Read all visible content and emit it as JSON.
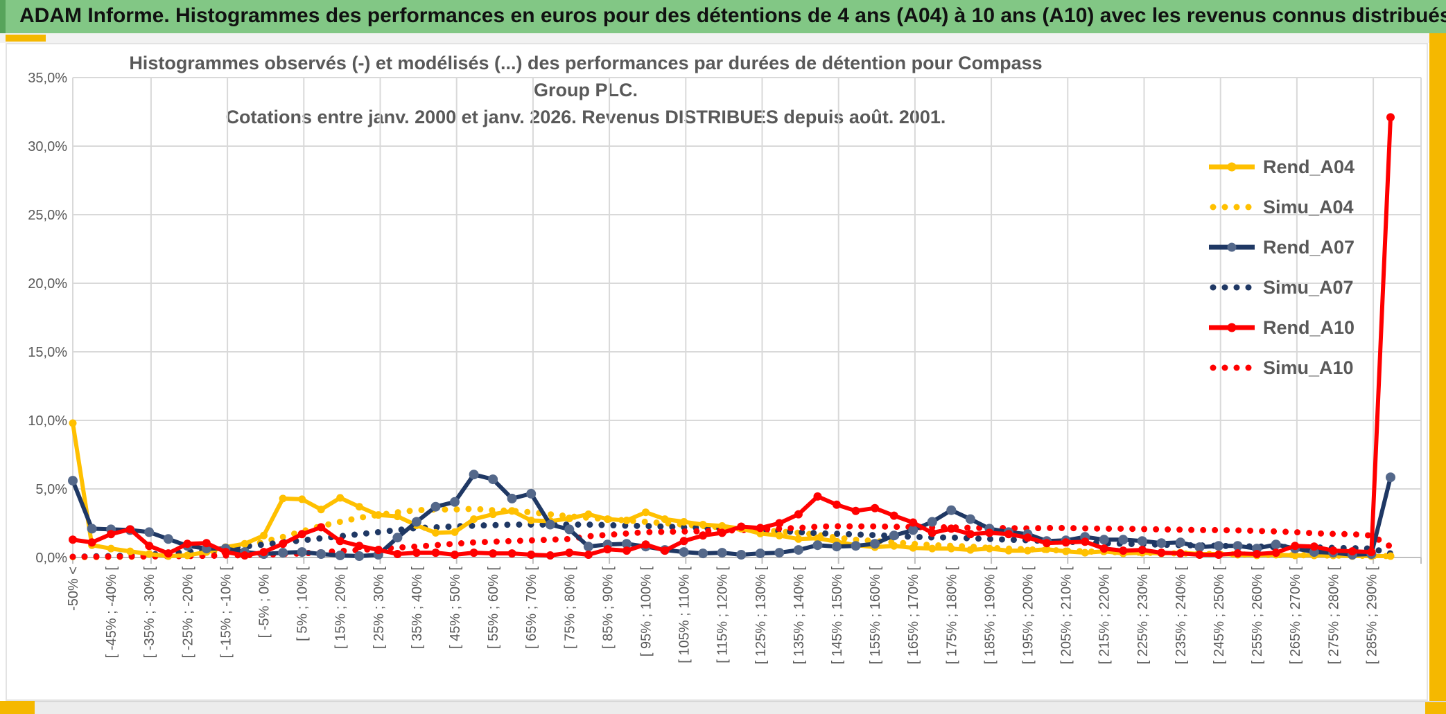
{
  "header": {
    "title": "ADAM Informe. Histogrammes des performances en euros pour des détentions de 4 ans (A04) à 10 ans (A10) avec les revenus connus distribués"
  },
  "colors": {
    "header_green": "#82C785",
    "header_green_dark": "#57A45B",
    "accent_gold": "#F5B800",
    "series_gold": "#FFC000",
    "series_navy": "#1F3864",
    "series_navy_marker": "#54688A",
    "series_red": "#FF0000",
    "text_gray": "#595959",
    "gridline": "#D9D9D9",
    "axis_line": "#BFBFBF"
  },
  "chart_data": {
    "type": "line",
    "title_line1": "Histogrammes observés (-) et modélisés (...) des performances par durées de détention pour Compass Group PLC.",
    "title_line2": "Cotations entre janv. 2000 et janv. 2026. Revenus DISTRIBUES depuis août. 2001.",
    "ylabel": "",
    "xlabel": "",
    "ylim": [
      0,
      35
    ],
    "y_tick_step_pct": 5,
    "y_ticks": [
      "35,0%",
      "30,0%",
      "25,0%",
      "20,0%",
      "15,0%",
      "10,0%",
      "5,0%",
      "0,0%"
    ],
    "grid": true,
    "legend_position": "right-inside",
    "n_bins": 70,
    "bins_per_label": 2,
    "categories": [
      "-50% <",
      "[ -45% ; -40% [",
      "[ -35% ; -30% [",
      "[ -25% ; -20% [",
      "[ -15% ; -10% [",
      "[ -5% ; 0% [",
      "[ 5% ; 10% [",
      "[ 15% ; 20% [",
      "[ 25% ; 30% [",
      "[ 35% ; 40% [",
      "[ 45% ; 50% [",
      "[ 55% ; 60% [",
      "[ 65% ; 70% [",
      "[ 75% ; 80% [",
      "[ 85% ; 90% [",
      "[ 95% ; 100% [",
      "[ 105% ; 110% [",
      "[ 115% ; 120% [",
      "[ 125% ; 130% [",
      "[ 135% ; 140% [",
      "[ 145% ; 150% [",
      "[ 155% ; 160% [",
      "[ 165% ; 170% [",
      "[ 175% ; 180% [",
      "[ 185% ; 190% [",
      "[ 195% ; 200% [",
      "[ 205% ; 210% [",
      "[ 215% ; 220% [",
      "[ 225% ; 230% [",
      "[ 235% ; 240% [",
      "[ 245% ; 250% [",
      "[ 255% ; 260% [",
      "[ 265% ; 270% [",
      "[ 275% ; 280% [",
      "[ 285% ; 290% ["
    ],
    "series": [
      {
        "name": "Rend_A04",
        "color": "#FFC000",
        "dotted": false,
        "marker": true,
        "marker_color": "#FFC000",
        "marker_r": 5.5,
        "values": [
          9.8,
          0.9,
          0.65,
          0.45,
          0.25,
          0.1,
          0.15,
          0.4,
          0.75,
          1.0,
          1.6,
          4.3,
          4.25,
          3.5,
          4.35,
          3.7,
          3.1,
          3.0,
          2.35,
          1.8,
          1.85,
          2.8,
          3.15,
          3.4,
          2.7,
          2.65,
          2.85,
          3.15,
          2.8,
          2.7,
          3.3,
          2.8,
          2.6,
          2.4,
          2.3,
          2.1,
          1.75,
          1.6,
          1.35,
          1.4,
          1.15,
          0.9,
          0.75,
          0.85,
          0.7,
          0.65,
          0.65,
          0.55,
          0.65,
          0.5,
          0.5,
          0.6,
          0.45,
          0.35,
          0.45,
          0.3,
          0.35,
          0.3,
          0.35,
          0.25,
          0.25,
          0.2,
          0.15,
          0.2,
          0.15,
          0.15,
          0.15,
          0.1,
          0.1,
          0.1
        ]
      },
      {
        "name": "Simu_A04",
        "color": "#FFC000",
        "dotted": true,
        "marker": false,
        "marker_color": "#FFC000",
        "marker_r": 0,
        "values": [
          0.02,
          0.03,
          0.04,
          0.05,
          0.07,
          0.1,
          0.15,
          0.3,
          0.5,
          0.8,
          1.15,
          1.5,
          1.9,
          2.3,
          2.6,
          2.9,
          3.1,
          3.3,
          3.45,
          3.5,
          3.5,
          3.55,
          3.45,
          3.4,
          3.3,
          3.15,
          3.0,
          2.9,
          2.8,
          2.7,
          2.6,
          2.5,
          2.4,
          2.3,
          2.2,
          2.1,
          2.0,
          1.9,
          1.8,
          1.65,
          1.45,
          1.3,
          1.2,
          1.1,
          1.0,
          0.9,
          0.85,
          0.8,
          0.7,
          0.65,
          0.6,
          0.55,
          0.5,
          0.45,
          0.4,
          0.38,
          0.35,
          0.32,
          0.3,
          0.27,
          0.25,
          0.22,
          0.2,
          0.18,
          0.17,
          0.15,
          0.14,
          0.13,
          0.12,
          0.1
        ]
      },
      {
        "name": "Rend_A07",
        "color": "#1F3864",
        "dotted": false,
        "marker": true,
        "marker_color": "#54688A",
        "marker_r": 7,
        "values": [
          5.6,
          2.1,
          2.05,
          2.0,
          1.85,
          1.35,
          0.85,
          0.65,
          0.65,
          0.4,
          0.25,
          0.35,
          0.4,
          0.25,
          0.15,
          0.1,
          0.2,
          1.45,
          2.6,
          3.7,
          4.05,
          6.05,
          5.7,
          4.3,
          4.65,
          2.4,
          2.05,
          0.8,
          0.95,
          1.0,
          0.8,
          0.55,
          0.4,
          0.3,
          0.35,
          0.2,
          0.3,
          0.35,
          0.55,
          0.9,
          0.8,
          0.85,
          1.0,
          1.6,
          2.0,
          2.6,
          3.45,
          2.8,
          2.1,
          1.85,
          1.7,
          1.2,
          1.25,
          1.5,
          1.3,
          1.3,
          1.2,
          1.05,
          1.1,
          0.75,
          0.85,
          0.85,
          0.65,
          0.95,
          0.65,
          0.4,
          0.35,
          0.2,
          0.25,
          5.85
        ]
      },
      {
        "name": "Simu_A07",
        "color": "#1F3864",
        "dotted": true,
        "marker": false,
        "marker_color": "#1F3864",
        "marker_r": 0,
        "values": [
          0.05,
          0.08,
          0.1,
          0.15,
          0.22,
          0.3,
          0.4,
          0.5,
          0.65,
          0.8,
          0.95,
          1.1,
          1.25,
          1.4,
          1.55,
          1.7,
          1.85,
          2.0,
          2.15,
          2.2,
          2.27,
          2.32,
          2.36,
          2.4,
          2.4,
          2.4,
          2.4,
          2.4,
          2.36,
          2.32,
          2.3,
          2.25,
          2.2,
          2.15,
          2.1,
          2.05,
          2.0,
          1.95,
          1.85,
          1.77,
          1.73,
          1.68,
          1.63,
          1.56,
          1.51,
          1.46,
          1.46,
          1.4,
          1.35,
          1.3,
          1.26,
          1.2,
          1.15,
          1.1,
          1.05,
          1.0,
          0.97,
          0.94,
          0.9,
          0.88,
          0.85,
          0.83,
          0.8,
          0.78,
          0.75,
          0.73,
          0.7,
          0.68,
          0.65,
          0.3
        ]
      },
      {
        "name": "Rend_A10",
        "color": "#FF0000",
        "dotted": false,
        "marker": true,
        "marker_color": "#FF0000",
        "marker_r": 6,
        "values": [
          1.3,
          1.1,
          1.7,
          2.05,
          0.85,
          0.3,
          1.0,
          1.05,
          0.4,
          0.15,
          0.4,
          1.0,
          1.7,
          2.2,
          1.2,
          0.85,
          0.55,
          0.25,
          0.35,
          0.35,
          0.2,
          0.35,
          0.3,
          0.3,
          0.2,
          0.15,
          0.35,
          0.2,
          0.6,
          0.5,
          0.95,
          0.5,
          1.2,
          1.6,
          1.8,
          2.25,
          2.15,
          2.5,
          3.15,
          4.45,
          3.85,
          3.4,
          3.6,
          3.05,
          2.55,
          1.8,
          2.1,
          1.7,
          1.8,
          1.7,
          1.45,
          1.05,
          1.1,
          1.15,
          0.65,
          0.5,
          0.55,
          0.35,
          0.3,
          0.2,
          0.2,
          0.3,
          0.25,
          0.35,
          0.85,
          0.8,
          0.5,
          0.45,
          0.4,
          32.1
        ]
      },
      {
        "name": "Simu_A10",
        "color": "#FF0000",
        "dotted": true,
        "marker": false,
        "marker_color": "#FF0000",
        "marker_r": 0,
        "values": [
          0.05,
          0.05,
          0.06,
          0.07,
          0.08,
          0.09,
          0.1,
          0.12,
          0.14,
          0.17,
          0.2,
          0.25,
          0.3,
          0.38,
          0.47,
          0.55,
          0.63,
          0.72,
          0.8,
          0.9,
          1.0,
          1.1,
          1.15,
          1.2,
          1.25,
          1.3,
          1.35,
          1.55,
          1.65,
          1.75,
          1.85,
          1.87,
          1.9,
          1.92,
          1.95,
          2.0,
          2.05,
          2.1,
          2.15,
          2.25,
          2.28,
          2.27,
          2.27,
          2.24,
          2.22,
          2.2,
          2.2,
          2.16,
          2.15,
          2.14,
          2.12,
          2.15,
          2.15,
          2.12,
          2.1,
          2.1,
          2.07,
          2.05,
          2.03,
          2.0,
          2.0,
          1.98,
          1.94,
          1.9,
          1.85,
          1.77,
          1.72,
          1.7,
          1.6,
          0.8
        ]
      }
    ]
  }
}
